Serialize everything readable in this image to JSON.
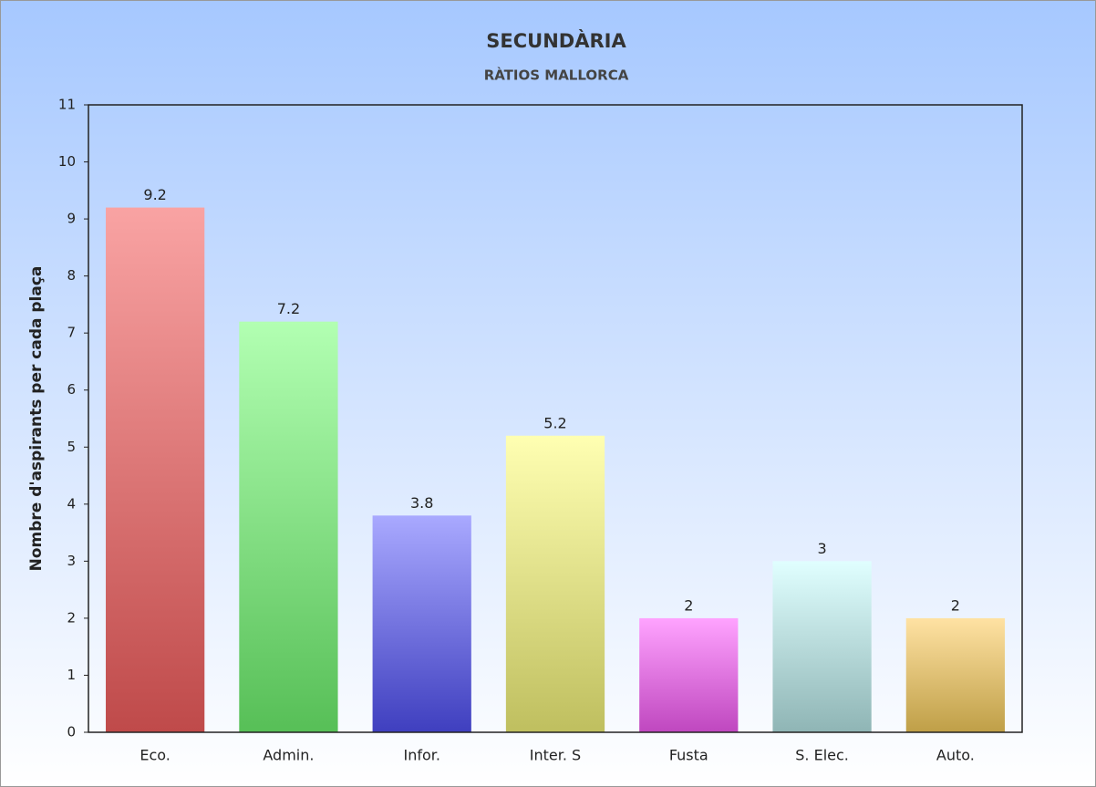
{
  "chart_data": {
    "type": "bar",
    "title": "SECUNDÀRIA",
    "subtitle": "RÀTIOS MALLORCA",
    "y_label": "Nombre d'aspirants per cada plaça",
    "categories": [
      "Eco.",
      "Admin.",
      "Infor.",
      "Inter. S",
      "Fusta",
      "S. Elec.",
      "Auto."
    ],
    "values": [
      9.2,
      7.2,
      3.8,
      5.2,
      2,
      3,
      2
    ],
    "colors": [
      "#f9a3a3",
      "#b2ffb2",
      "#a9a9ff",
      "#ffffb2",
      "#ffa3ff",
      "#e0ffff",
      "#ffe2a3"
    ],
    "colors_bottom": [
      "#bf4a4a",
      "#57bf57",
      "#3f3fbf",
      "#bfbf5f",
      "#bf47bf",
      "#8fb5b5",
      "#bf9f47"
    ],
    "ylim": [
      0,
      11
    ],
    "yticks": [
      0,
      1,
      2,
      3,
      4,
      5,
      6,
      7,
      8,
      9,
      10,
      11
    ],
    "grid": false
  }
}
